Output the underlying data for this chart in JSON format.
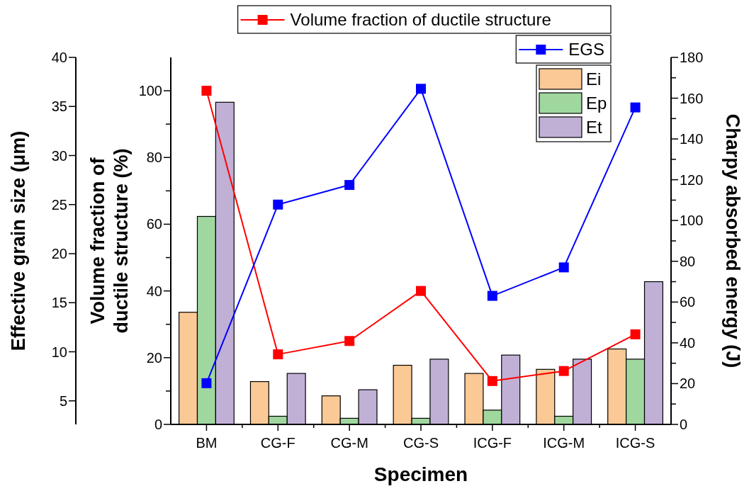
{
  "chart_data": {
    "type": "bar",
    "categories": [
      "BM",
      "CG-F",
      "CG-M",
      "CG-S",
      "ICG-F",
      "ICG-M",
      "ICG-S"
    ],
    "xlabel": "Specimen",
    "ylabel": "Effective grain size (μm)",
    "y2label": "Charpy absorbed energy (J)",
    "y3label": "Volume fraction of ductile structure (%)",
    "ylim": [
      2.6,
      40
    ],
    "yticks": [
      5,
      10,
      15,
      20,
      25,
      30,
      35,
      40
    ],
    "y2lim": [
      0,
      180
    ],
    "y2ticks": [
      0,
      {
        "value": 10,
        "label": null
      },
      20,
      {
        "value": 30,
        "label": null
      },
      40,
      {
        "value": 50,
        "label": null
      },
      60,
      {
        "value": 70,
        "label": null
      },
      80,
      {
        "value": 90,
        "label": null
      },
      100,
      {
        "value": 110,
        "label": null
      },
      120,
      {
        "value": 130,
        "label": null
      },
      140,
      {
        "value": 150,
        "label": null
      },
      160,
      {
        "value": 170,
        "label": null
      },
      180
    ],
    "y3lim": [
      0,
      110
    ],
    "y3ticks": [
      0,
      {
        "value": 10,
        "label": null
      },
      20,
      {
        "value": 30,
        "label": null
      },
      40,
      {
        "value": 50,
        "label": null
      },
      60,
      {
        "value": 70,
        "label": null
      },
      80,
      {
        "value": 90,
        "label": null
      },
      100
    ],
    "legend": "top right",
    "marker": "square",
    "series": [
      {
        "name": "Ei",
        "axis": "y2",
        "color": "#fbc995",
        "values": [
          55,
          21,
          14,
          29,
          25,
          27,
          37
        ]
      },
      {
        "name": "Ep",
        "axis": "y2",
        "color": "#9fd79f",
        "values": [
          102,
          4,
          3,
          3,
          7,
          4,
          32
        ]
      },
      {
        "name": "Et",
        "axis": "y2",
        "color": "#c1b0d6",
        "values": [
          158,
          25,
          17,
          32,
          34,
          32,
          70
        ]
      },
      {
        "name": "Volume fraction of ductile structure",
        "type": "line",
        "axis": "y3",
        "color": "#ff0000",
        "values": [
          100,
          21,
          25,
          40,
          13,
          16,
          27
        ]
      },
      {
        "name": "EGS",
        "type": "line",
        "color": "#0000ff",
        "values": [
          6.8,
          25,
          27,
          36.8,
          15.7,
          18.6,
          34.9
        ]
      }
    ]
  }
}
